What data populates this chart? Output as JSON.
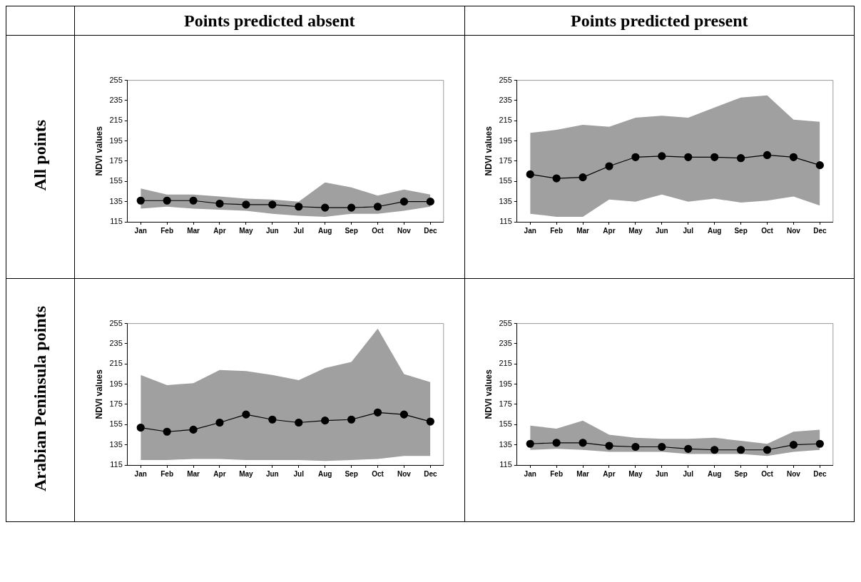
{
  "chart_data": [
    {
      "type": "line",
      "title": "Points predicted absent",
      "subtitle": "All points",
      "ylabel": "NDVI values",
      "categories": [
        "Jan",
        "Feb",
        "Mar",
        "Apr",
        "May",
        "Jun",
        "Jul",
        "Aug",
        "Sep",
        "Oct",
        "Nov",
        "Dec"
      ],
      "ylim": [
        115,
        255
      ],
      "yticks": [
        115,
        135,
        155,
        175,
        195,
        215,
        235,
        255
      ],
      "grid": false,
      "legend": false,
      "marker": "circle",
      "series": [
        {
          "color": "#000000",
          "values": [
            136,
            136,
            136,
            133,
            132,
            132,
            130,
            129,
            129,
            130,
            135,
            135
          ],
          "lower": [
            128,
            130,
            128,
            127,
            126,
            123,
            121,
            120,
            123,
            123,
            126,
            130
          ],
          "upper": [
            148,
            142,
            142,
            140,
            138,
            137,
            135,
            154,
            149,
            141,
            147,
            142
          ]
        }
      ]
    },
    {
      "type": "line",
      "title": "Points predicted present",
      "ylabel": "NDVI values",
      "categories": [
        "Jan",
        "Feb",
        "Mar",
        "Apr",
        "May",
        "Jun",
        "Jul",
        "Aug",
        "Sep",
        "Oct",
        "Nov",
        "Dec"
      ],
      "ylim": [
        115,
        255
      ],
      "yticks": [
        115,
        135,
        155,
        175,
        195,
        215,
        235,
        255
      ],
      "grid": false,
      "legend": false,
      "marker": "circle",
      "series": [
        {
          "color": "#000000",
          "values": [
            162,
            158,
            159,
            170,
            179,
            180,
            179,
            179,
            178,
            181,
            179,
            171
          ],
          "lower": [
            123,
            120,
            120,
            137,
            135,
            142,
            135,
            138,
            134,
            136,
            140,
            131
          ],
          "upper": [
            203,
            206,
            211,
            209,
            218,
            220,
            218,
            228,
            238,
            240,
            216,
            214
          ]
        }
      ]
    },
    {
      "type": "line",
      "subtitle": "Arabian Peninsula points",
      "ylabel": "NDVI values",
      "categories": [
        "Jan",
        "Feb",
        "Mar",
        "Apr",
        "May",
        "Jun",
        "Jul",
        "Aug",
        "Sep",
        "Oct",
        "Nov",
        "Dec"
      ],
      "ylim": [
        115,
        255
      ],
      "yticks": [
        115,
        135,
        155,
        175,
        195,
        215,
        235,
        255
      ],
      "grid": false,
      "legend": false,
      "marker": "circle",
      "series": [
        {
          "color": "#000000",
          "values": [
            152,
            148,
            150,
            157,
            165,
            160,
            157,
            159,
            160,
            167,
            165,
            158
          ],
          "lower": [
            120,
            120,
            121,
            121,
            120,
            120,
            120,
            119,
            120,
            121,
            124,
            124
          ],
          "upper": [
            204,
            194,
            196,
            209,
            208,
            204,
            199,
            211,
            217,
            250,
            205,
            197
          ]
        }
      ]
    },
    {
      "type": "line",
      "ylabel": "NDVI values",
      "categories": [
        "Jan",
        "Feb",
        "Mar",
        "Apr",
        "May",
        "Jun",
        "Jul",
        "Aug",
        "Sep",
        "Oct",
        "Nov",
        "Dec"
      ],
      "ylim": [
        115,
        255
      ],
      "yticks": [
        115,
        135,
        155,
        175,
        195,
        215,
        235,
        255
      ],
      "grid": false,
      "legend": false,
      "marker": "circle",
      "series": [
        {
          "color": "#000000",
          "values": [
            136,
            137,
            137,
            134,
            133,
            133,
            131,
            130,
            130,
            130,
            135,
            136
          ],
          "lower": [
            130,
            131,
            130,
            128,
            128,
            128,
            126,
            126,
            126,
            124,
            128,
            130
          ],
          "upper": [
            154,
            151,
            159,
            145,
            142,
            141,
            141,
            142,
            139,
            136,
            148,
            150
          ]
        }
      ]
    }
  ]
}
